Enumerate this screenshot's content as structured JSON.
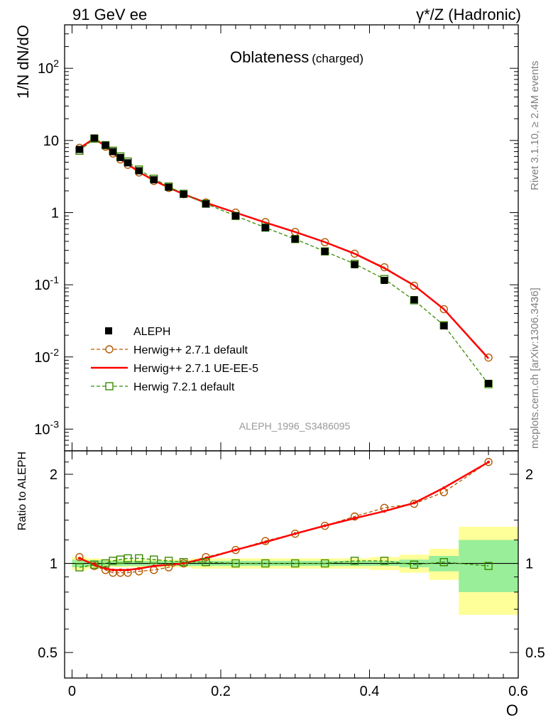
{
  "header": {
    "left": "91 GeV ee",
    "right": "γ*/Z (Hadronic)"
  },
  "side_labels": {
    "rivet": "Rivet 3.1.10, ≥ 2.4M events",
    "mcplots": "mcplots.cern.ch [arXiv:1306.3436]"
  },
  "chart_data": [
    {
      "type": "line",
      "title": "Oblateness",
      "title_suffix": "(charged)",
      "ylabel": "1/N dN/dO",
      "yscale": "log",
      "ylim": [
        0.0005,
        400
      ],
      "xlim": [
        -0.01,
        0.6
      ],
      "y_ticks": [
        {
          "value": 0.001,
          "label": "10",
          "sup": "-3"
        },
        {
          "value": 0.01,
          "label": "10",
          "sup": "-2"
        },
        {
          "value": 0.1,
          "label": "10",
          "sup": "-1"
        },
        {
          "value": 1,
          "label": "1",
          "sup": ""
        },
        {
          "value": 10,
          "label": "10",
          "sup": ""
        },
        {
          "value": 100,
          "label": "10",
          "sup": "2"
        }
      ],
      "watermark": "ALEPH_1996_S3486095",
      "x": [
        0.01,
        0.03,
        0.045,
        0.055,
        0.065,
        0.075,
        0.09,
        0.11,
        0.13,
        0.15,
        0.18,
        0.22,
        0.26,
        0.3,
        0.34,
        0.38,
        0.42,
        0.46,
        0.5,
        0.56
      ],
      "series": [
        {
          "name": "ALEPH",
          "style": "data",
          "color": "#000000",
          "values": [
            7.5,
            10.8,
            8.6,
            7.0,
            5.8,
            4.9,
            3.8,
            2.85,
            2.25,
            1.8,
            1.32,
            0.9,
            0.62,
            0.43,
            0.29,
            0.19,
            0.115,
            0.062,
            0.027,
            0.0043
          ]
        },
        {
          "name": "Herwig++ 2.7.1 default",
          "style": "dashed-circle",
          "color": "#b35900",
          "values": [
            7.9,
            10.6,
            8.2,
            6.6,
            5.45,
            4.6,
            3.6,
            2.75,
            2.2,
            1.8,
            1.38,
            1.0,
            0.74,
            0.54,
            0.39,
            0.27,
            0.175,
            0.097,
            0.046,
            0.0098
          ]
        },
        {
          "name": "Herwig++ 2.7.1 UE-EE-5",
          "style": "solid",
          "color": "#ff0000",
          "values": [
            7.8,
            10.7,
            8.3,
            6.7,
            5.5,
            4.7,
            3.65,
            2.8,
            2.22,
            1.8,
            1.37,
            1.0,
            0.73,
            0.54,
            0.39,
            0.27,
            0.17,
            0.098,
            0.046,
            0.0095
          ]
        },
        {
          "name": "Herwig 7.2.1 default",
          "style": "dashed-square",
          "color": "#3a8a00",
          "values": [
            7.2,
            10.6,
            8.6,
            7.2,
            6.0,
            5.1,
            3.95,
            2.95,
            2.3,
            1.82,
            1.33,
            0.9,
            0.62,
            0.43,
            0.29,
            0.195,
            0.12,
            0.061,
            0.0275,
            0.0042
          ]
        }
      ]
    },
    {
      "type": "line",
      "ylabel": "Ratio to ALEPH",
      "xlabel": "O",
      "yscale": "log",
      "ylim": [
        0.41,
        2.4
      ],
      "xlim": [
        -0.01,
        0.6
      ],
      "y_ticks": [
        {
          "value": 0.5,
          "label": "0.5"
        },
        {
          "value": 1,
          "label": "1"
        },
        {
          "value": 2,
          "label": "2"
        }
      ],
      "x_ticks": [
        {
          "value": 0,
          "label": "0"
        },
        {
          "value": 0.2,
          "label": "0.2"
        },
        {
          "value": 0.4,
          "label": "0.4"
        },
        {
          "value": 0.6,
          "label": "0.6"
        }
      ],
      "uncertainty_bands": {
        "x_edges": [
          0.0,
          0.02,
          0.04,
          0.05,
          0.06,
          0.07,
          0.08,
          0.1,
          0.12,
          0.14,
          0.16,
          0.2,
          0.24,
          0.28,
          0.32,
          0.36,
          0.4,
          0.44,
          0.48,
          0.52,
          0.6
        ],
        "stat": [
          0.03,
          0.025,
          0.02,
          0.02,
          0.02,
          0.02,
          0.02,
          0.02,
          0.02,
          0.02,
          0.02,
          0.02,
          0.02,
          0.02,
          0.02,
          0.02,
          0.02,
          0.03,
          0.06,
          0.2
        ],
        "total": [
          0.05,
          0.04,
          0.03,
          0.03,
          0.03,
          0.03,
          0.03,
          0.03,
          0.03,
          0.03,
          0.04,
          0.04,
          0.04,
          0.04,
          0.04,
          0.04,
          0.05,
          0.07,
          0.12,
          0.33
        ],
        "stat_color": "#99ee99",
        "total_color": "#ffff99"
      },
      "series": [
        {
          "name": "Herwig++ 2.7.1 default",
          "style": "dashed-circle",
          "color": "#b35900",
          "values": [
            1.05,
            0.98,
            0.95,
            0.93,
            0.93,
            0.93,
            0.94,
            0.95,
            0.97,
            1.0,
            1.05,
            1.11,
            1.19,
            1.26,
            1.34,
            1.44,
            1.54,
            1.59,
            1.74,
            2.2
          ]
        },
        {
          "name": "Herwig++ 2.7.1 UE-EE-5",
          "style": "solid",
          "color": "#ff0000",
          "values": [
            1.04,
            0.99,
            0.96,
            0.95,
            0.95,
            0.95,
            0.96,
            0.98,
            0.99,
            1.0,
            1.04,
            1.11,
            1.18,
            1.26,
            1.34,
            1.42,
            1.5,
            1.6,
            1.8,
            2.2
          ]
        },
        {
          "name": "Herwig 7.2.1 default",
          "style": "dashed-square",
          "color": "#3a8a00",
          "values": [
            0.97,
            0.99,
            1.0,
            1.02,
            1.03,
            1.04,
            1.04,
            1.03,
            1.02,
            1.01,
            1.01,
            1.0,
            1.0,
            1.0,
            1.0,
            1.02,
            1.02,
            0.99,
            1.01,
            0.98
          ]
        }
      ]
    }
  ]
}
